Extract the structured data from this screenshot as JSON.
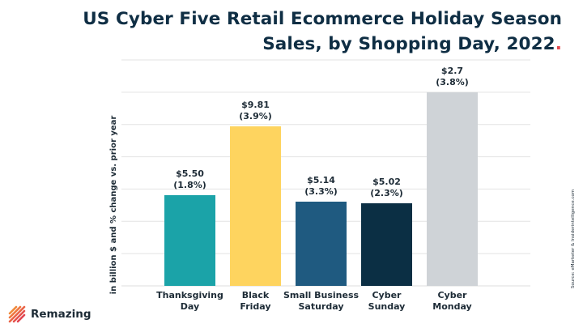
{
  "title_line1": "US Cyber Five Retail Ecommerce Holiday Season",
  "title_line2": "Sales, by Shopping Day, 2022",
  "title_dot": ".",
  "source": "Source: eMarketer & Insiderintelligence.com",
  "brand": "Remazing",
  "colors": {
    "title": "#0f2e44",
    "accent_dot": "#e5484d",
    "grid": "#e3e3e3"
  },
  "chart_data": {
    "type": "bar",
    "ylabel": "in billion $ and % change vs. prior year",
    "categories": [
      [
        "Thanksgiving",
        "Day"
      ],
      [
        "Black",
        "Friday"
      ],
      [
        "Small Business",
        "Saturday"
      ],
      [
        "Cyber",
        "Sunday"
      ],
      [
        "Cyber",
        "Monday"
      ]
    ],
    "values": [
      5.5,
      9.81,
      5.14,
      5.02,
      2.7
    ],
    "value_labels": [
      "$5.50",
      "$9.81",
      "$5.14",
      "$5.02",
      "$2.7"
    ],
    "change_labels": [
      "(1.8%)",
      "(3.9%)",
      "(3.3%)",
      "(2.3%)",
      "(3.8%)"
    ],
    "bar_colors": [
      "#1ba3a8",
      "#fed45f",
      "#1f5a80",
      "#0b2f44",
      "#cfd3d7"
    ],
    "ylim": [
      0,
      12
    ],
    "grid": true
  }
}
